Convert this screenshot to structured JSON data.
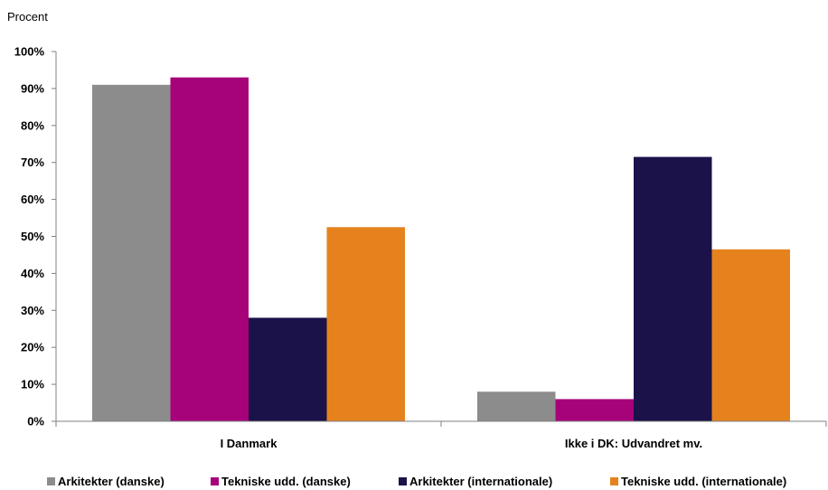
{
  "chart_data": {
    "type": "bar",
    "ylabel": "Procent",
    "ylim": [
      0,
      100
    ],
    "yticks": [
      "0%",
      "10%",
      "20%",
      "30%",
      "40%",
      "50%",
      "60%",
      "70%",
      "80%",
      "90%",
      "100%"
    ],
    "categories": [
      "I Danmark",
      "Ikke i DK: Udvandret mv."
    ],
    "series": [
      {
        "name": "Arkitekter (danske)",
        "color": "#8c8c8c",
        "values": [
          91,
          8
        ]
      },
      {
        "name": "Tekniske udd. (danske)",
        "color": "#a6037a",
        "values": [
          93,
          6
        ]
      },
      {
        "name": "Arkitekter (internationale)",
        "color": "#1a1249",
        "values": [
          28,
          71.5
        ]
      },
      {
        "name": "Tekniske udd. (internationale)",
        "color": "#e6821e",
        "values": [
          52.5,
          46.5
        ]
      }
    ],
    "grid": false,
    "legend": "bottom"
  }
}
